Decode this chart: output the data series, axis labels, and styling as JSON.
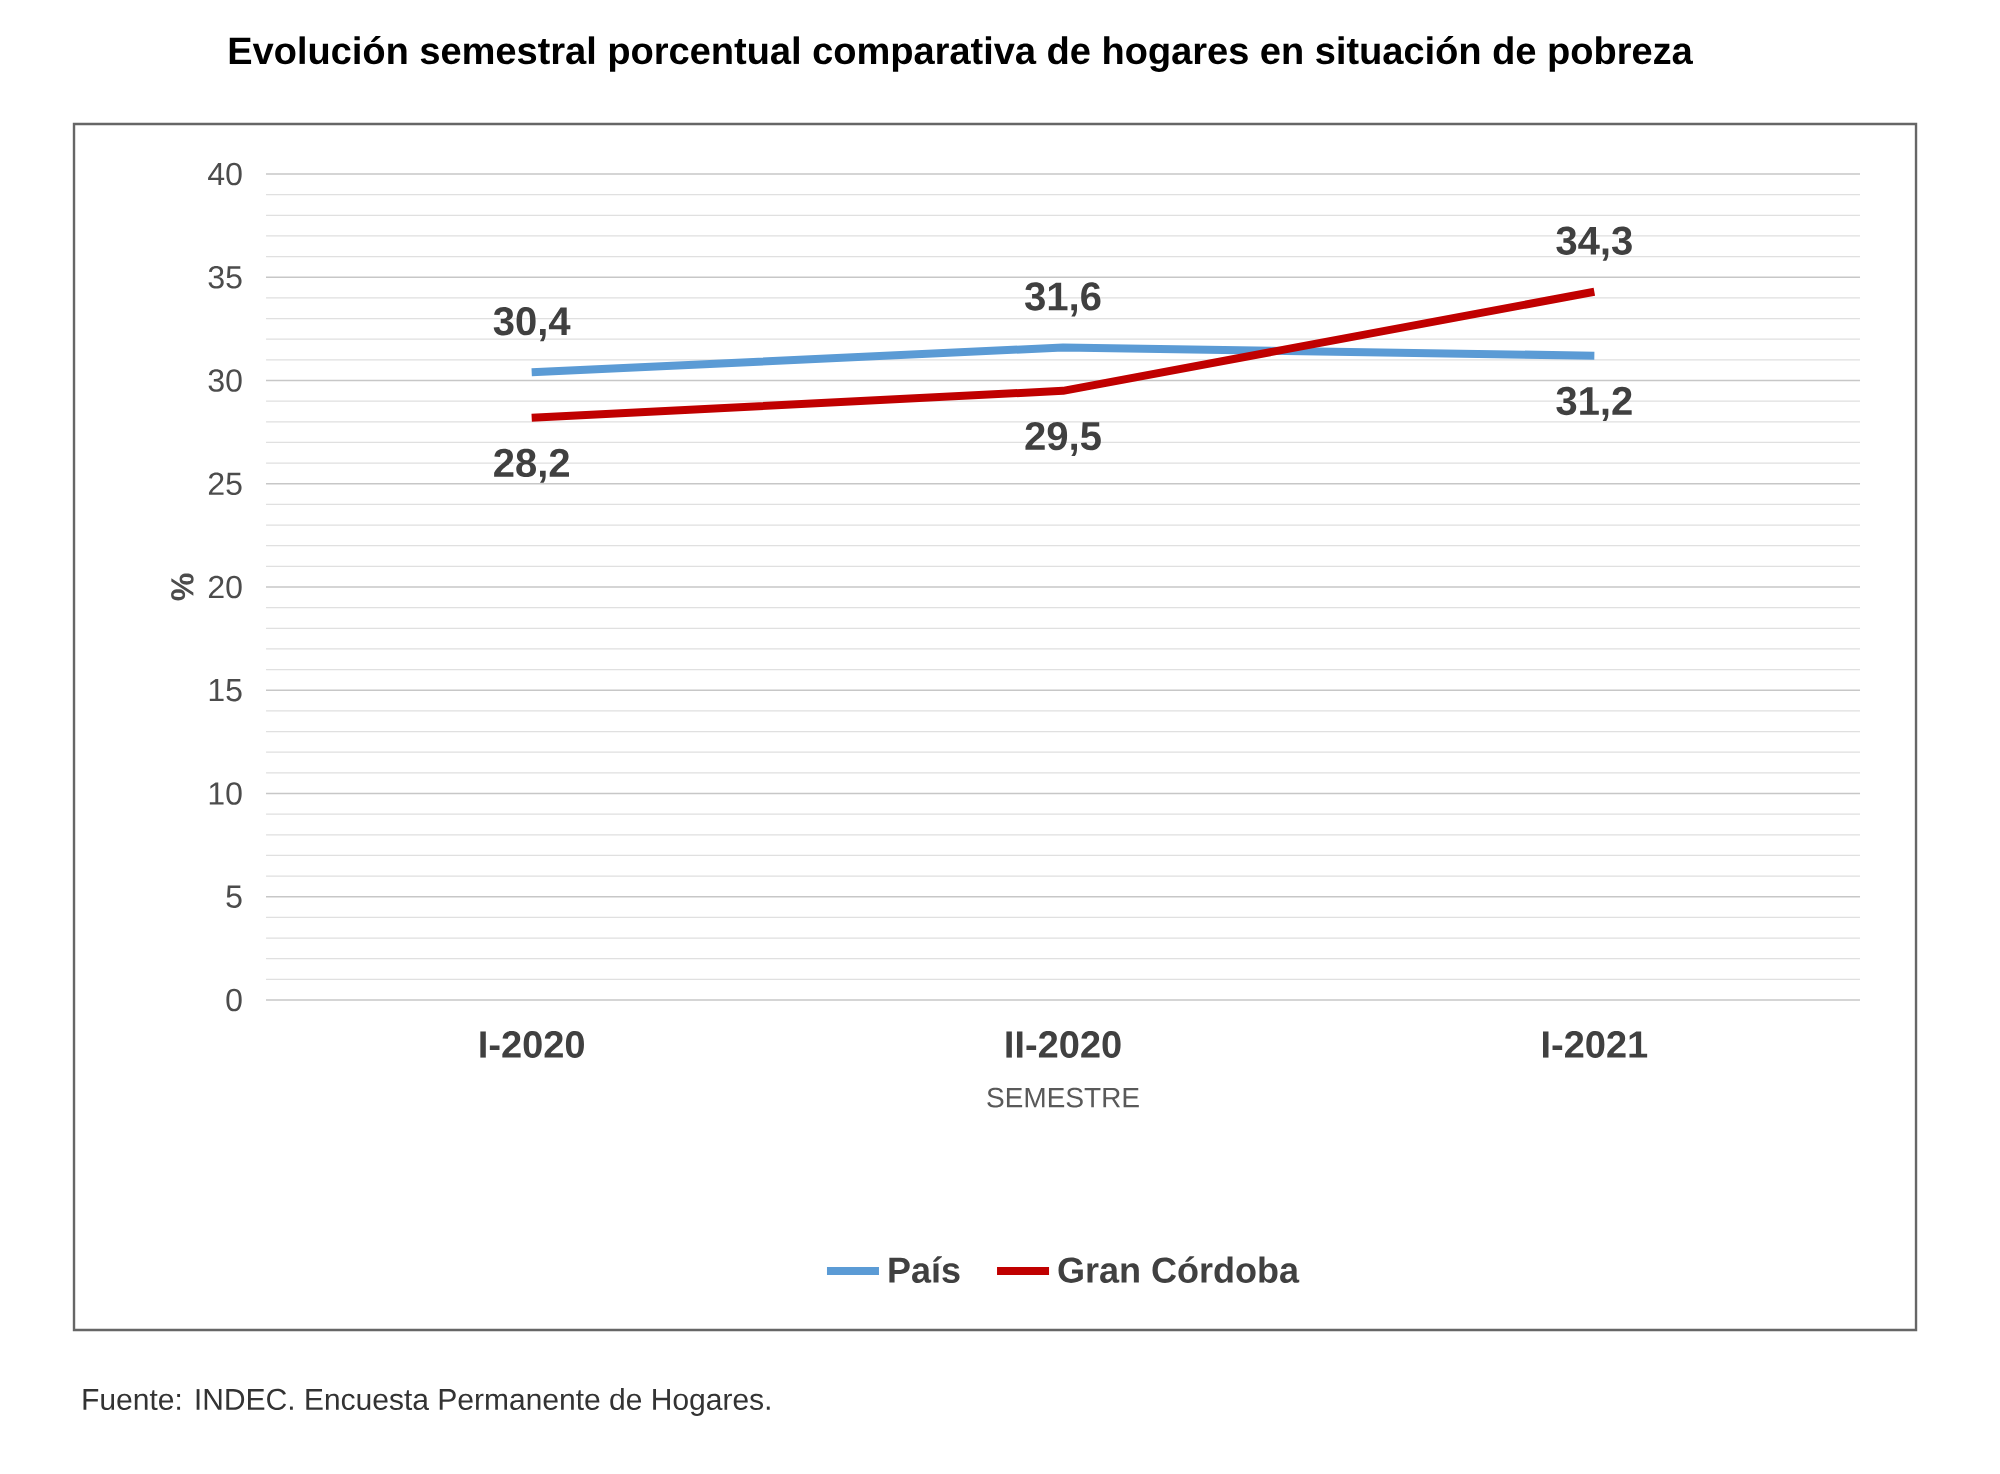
{
  "chart_data": {
    "type": "line",
    "title": "Evolución semestral porcentual comparativa de hogares en situación de pobreza",
    "xlabel": "SEMESTRE",
    "ylabel": "%",
    "categories": [
      "I-2020",
      "II-2020",
      "I-2021"
    ],
    "series": [
      {
        "name": "País",
        "color": "#5b9bd5",
        "values": [
          30.4,
          31.6,
          31.2
        ],
        "value_labels": [
          "30,4",
          "31,6",
          "31,2"
        ]
      },
      {
        "name": "Gran Córdoba",
        "color": "#c00000",
        "values": [
          28.2,
          29.5,
          34.3
        ],
        "value_labels": [
          "28,2",
          "29,5",
          "34,3"
        ]
      }
    ],
    "ylim": [
      0,
      40
    ],
    "yticks": [
      0,
      5,
      10,
      15,
      20,
      25,
      30,
      35,
      40
    ],
    "grid": "y",
    "legend": "bottom",
    "marker": "none",
    "line_style": "solid",
    "annotations": [
      "Fuente: INDEC. Encuesta Permanente de Hogares."
    ]
  }
}
